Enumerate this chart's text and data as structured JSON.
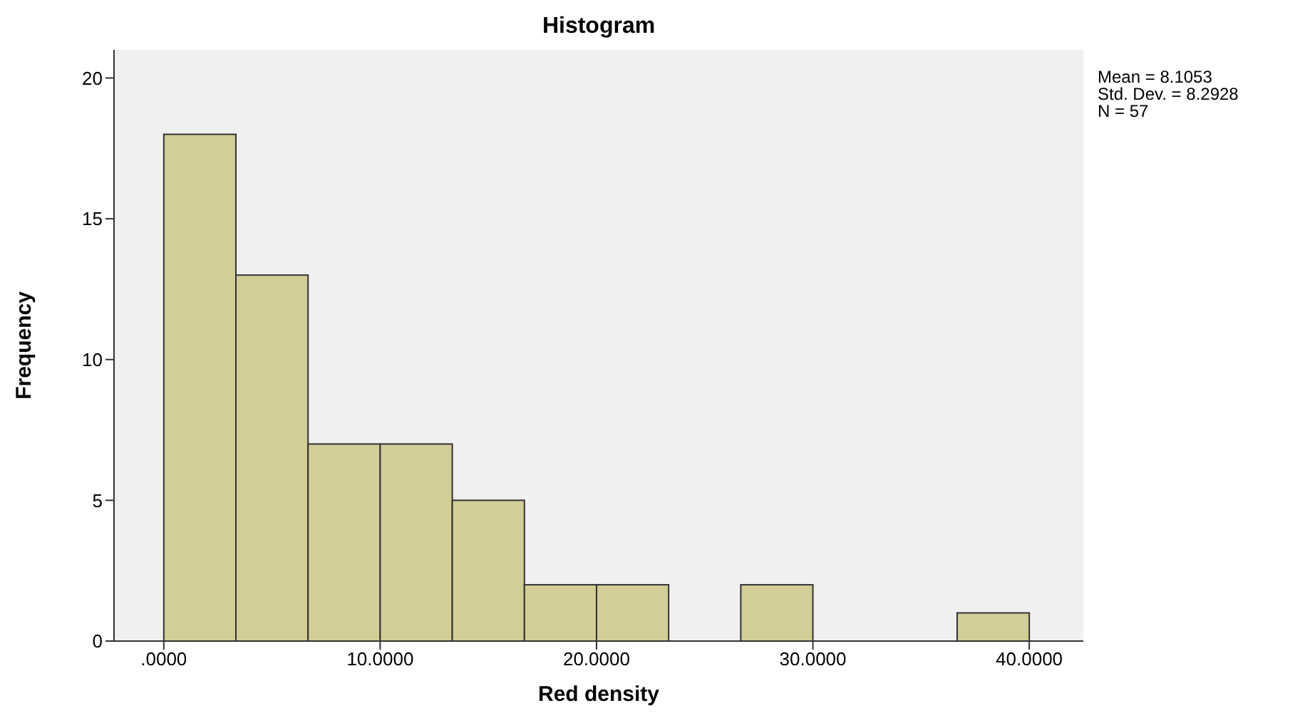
{
  "chart_data": {
    "type": "histogram",
    "title": "Histogram",
    "xlabel": "Red density",
    "ylabel": "Frequency",
    "bins": [
      0,
      3.3333,
      6.6667,
      10,
      13.3333,
      16.6667,
      20,
      23.3333,
      26.6667,
      30,
      33.3333,
      36.6667,
      40
    ],
    "values": [
      18,
      13,
      7,
      7,
      5,
      2,
      2,
      0,
      2,
      0,
      0,
      1
    ],
    "color": "#d3ce98",
    "xlim": [
      -2.3,
      42.5
    ],
    "xticks": [
      {
        "value": 0,
        "label": ".0000"
      },
      {
        "value": 10,
        "label": "10.0000"
      },
      {
        "value": 20,
        "label": "20.0000"
      },
      {
        "value": 30,
        "label": "30.0000"
      },
      {
        "value": 40,
        "label": "40.0000"
      }
    ],
    "ylim": [
      0,
      21
    ],
    "yticks": [
      0,
      5,
      10,
      15,
      20
    ],
    "grid": false,
    "annotations": [
      "Mean = 8.1053",
      "Std. Dev. = 8.2928",
      "N = 57"
    ]
  }
}
